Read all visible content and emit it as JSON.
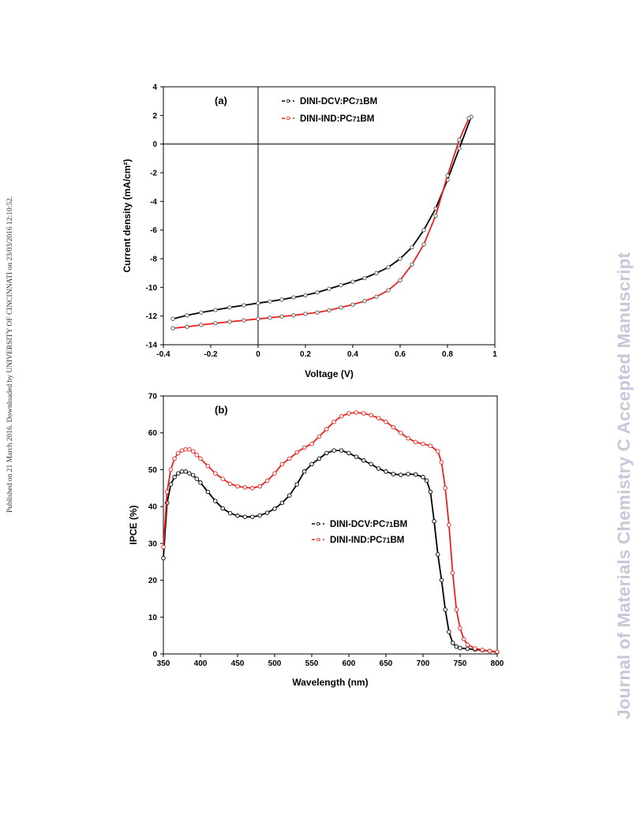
{
  "side_note": "Published on 21 March 2016. Downloaded by UNIVERSITY OF CINCINNATI on 23/03/2016 12:10:52.",
  "watermark": "Journal of Materials Chemistry C Accepted Manuscript",
  "colors": {
    "series1": "#000000",
    "series2": "#e8231f",
    "watermark": "#c4c8d8"
  },
  "chart_data": [
    {
      "type": "line",
      "panel_label": "(a)",
      "xlabel": "Voltage (V)",
      "ylabel": "Current density (mA/cm²)",
      "xlim": [
        -0.4,
        1.0
      ],
      "ylim": [
        -14,
        4
      ],
      "xticks": [
        "-0.4",
        "-0.2",
        "0",
        "0.2",
        "0.4",
        "0.6",
        "0.8",
        "1"
      ],
      "yticks": [
        "-14",
        "-12",
        "-10",
        "-8",
        "-6",
        "-4",
        "-2",
        "0",
        "2",
        "4"
      ],
      "grid": false,
      "legend_position": "top-right",
      "series": [
        {
          "name": "DINI-DCV:PC71BM",
          "x": [
            -0.36,
            -0.3,
            -0.24,
            -0.18,
            -0.12,
            -0.06,
            0.0,
            0.05,
            0.1,
            0.15,
            0.2,
            0.25,
            0.3,
            0.35,
            0.4,
            0.45,
            0.5,
            0.55,
            0.6,
            0.65,
            0.7,
            0.75,
            0.8,
            0.85,
            0.9
          ],
          "y": [
            -12.2,
            -11.95,
            -11.75,
            -11.58,
            -11.4,
            -11.25,
            -11.1,
            -10.98,
            -10.85,
            -10.7,
            -10.55,
            -10.35,
            -10.1,
            -9.85,
            -9.6,
            -9.35,
            -9.0,
            -8.6,
            -8.0,
            -7.2,
            -6.0,
            -4.5,
            -2.5,
            -0.3,
            1.9
          ]
        },
        {
          "name": "DINI-IND:PC71BM",
          "x": [
            -0.36,
            -0.3,
            -0.24,
            -0.18,
            -0.12,
            -0.06,
            0.0,
            0.05,
            0.1,
            0.15,
            0.2,
            0.25,
            0.3,
            0.35,
            0.4,
            0.45,
            0.5,
            0.55,
            0.6,
            0.65,
            0.7,
            0.75,
            0.8,
            0.85,
            0.89
          ],
          "y": [
            -12.85,
            -12.75,
            -12.62,
            -12.5,
            -12.4,
            -12.3,
            -12.2,
            -12.12,
            -12.03,
            -11.95,
            -11.85,
            -11.75,
            -11.6,
            -11.4,
            -11.2,
            -10.95,
            -10.65,
            -10.2,
            -9.5,
            -8.4,
            -7.0,
            -5.0,
            -2.2,
            0.3,
            1.8
          ]
        }
      ]
    },
    {
      "type": "line",
      "panel_label": "(b)",
      "xlabel": "Wavelength (nm)",
      "ylabel": "IPCE (%)",
      "xlim": [
        350,
        800
      ],
      "ylim": [
        0,
        70
      ],
      "xticks": [
        "350",
        "400",
        "450",
        "500",
        "550",
        "600",
        "650",
        "700",
        "750",
        "800"
      ],
      "yticks": [
        "0",
        "10",
        "20",
        "30",
        "40",
        "50",
        "60",
        "70"
      ],
      "grid": false,
      "legend_position": "middle-right",
      "series": [
        {
          "name": "DINI-DCV:PC71BM",
          "x": [
            350,
            355,
            360,
            365,
            370,
            375,
            380,
            385,
            390,
            395,
            400,
            410,
            420,
            430,
            440,
            450,
            460,
            470,
            480,
            490,
            500,
            510,
            520,
            530,
            540,
            550,
            560,
            570,
            580,
            590,
            600,
            610,
            620,
            630,
            640,
            650,
            660,
            670,
            680,
            690,
            700,
            705,
            710,
            715,
            720,
            725,
            730,
            735,
            740,
            745,
            750,
            760,
            770,
            780,
            790,
            800
          ],
          "y": [
            26,
            41,
            46,
            48,
            49,
            49.5,
            49.5,
            49,
            48.5,
            47.5,
            46.5,
            44,
            41.5,
            39.5,
            38.2,
            37.5,
            37.2,
            37.2,
            37.6,
            38.3,
            39.4,
            41,
            43,
            46,
            49.5,
            51.5,
            53,
            54.5,
            55.2,
            55.2,
            54.5,
            53.5,
            52.5,
            51.5,
            50.3,
            49.5,
            48.8,
            48.6,
            48.8,
            48.7,
            48,
            47,
            44,
            36,
            27,
            20,
            12,
            6,
            3,
            2,
            1.6,
            1.4,
            1.2,
            1,
            0.8,
            0.5
          ]
        },
        {
          "name": "DINI-IND:PC71BM",
          "x": [
            350,
            355,
            360,
            365,
            370,
            375,
            380,
            385,
            390,
            395,
            400,
            410,
            420,
            430,
            440,
            450,
            460,
            470,
            480,
            490,
            500,
            510,
            520,
            530,
            540,
            550,
            560,
            570,
            580,
            590,
            600,
            610,
            620,
            630,
            640,
            650,
            660,
            670,
            680,
            690,
            700,
            710,
            720,
            725,
            730,
            735,
            740,
            745,
            750,
            755,
            760,
            770,
            780,
            790,
            800
          ],
          "y": [
            29,
            44,
            50,
            53,
            54.5,
            55.2,
            55.5,
            55.5,
            55,
            54,
            53,
            51,
            49,
            47.5,
            46.2,
            45.5,
            45.2,
            45,
            45.5,
            47,
            49,
            51.5,
            53,
            54.7,
            56,
            57,
            59,
            61,
            63,
            64.5,
            65.3,
            65.5,
            65.3,
            64.8,
            64,
            63,
            61.5,
            60,
            58.5,
            57.5,
            57,
            56.5,
            55,
            52,
            45,
            35,
            22,
            12,
            7,
            4,
            2.5,
            1.5,
            1.1,
            0.8,
            0.6
          ]
        }
      ]
    }
  ]
}
